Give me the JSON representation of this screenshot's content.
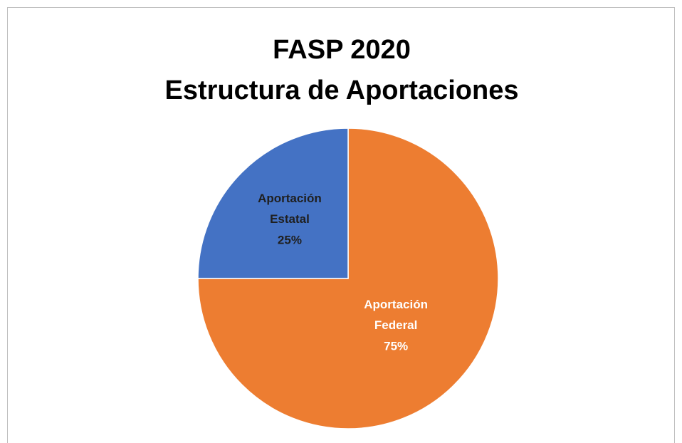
{
  "chart_data": {
    "type": "pie",
    "title": "FASP 2020",
    "subtitle": "Estructura de Aportaciones",
    "categories": [
      "Aportación Federal",
      "Aportación Estatal"
    ],
    "values": [
      75,
      25
    ],
    "value_labels": [
      "75%",
      "25%"
    ],
    "colors": [
      "#ed7d31",
      "#4472c4"
    ],
    "label_colors": [
      "#ffffff",
      "#1f1f1f"
    ]
  }
}
